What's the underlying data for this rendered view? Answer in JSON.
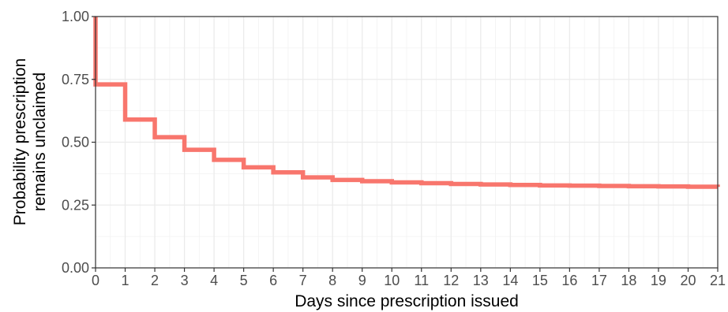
{
  "chart_data": {
    "type": "line",
    "subtype": "step",
    "title": "",
    "xlabel": "Days since prescription issued",
    "ylabel_lines": [
      "Probability prescription",
      "remains unclaimed"
    ],
    "xlim": [
      0,
      21
    ],
    "ylim": [
      0,
      1
    ],
    "x_ticks": [
      0,
      1,
      2,
      3,
      4,
      5,
      6,
      7,
      8,
      9,
      10,
      11,
      12,
      13,
      14,
      15,
      16,
      17,
      18,
      19,
      20,
      21
    ],
    "x_tick_labels": [
      "0",
      "1",
      "2",
      "3",
      "4",
      "5",
      "6",
      "7",
      "8",
      "9",
      "10",
      "11",
      "12",
      "13",
      "14",
      "15",
      "16",
      "17",
      "18",
      "19",
      "20",
      "21"
    ],
    "y_ticks": [
      0,
      0.25,
      0.5,
      0.75,
      1
    ],
    "y_tick_labels": [
      "0.00",
      "0.25",
      "0.50",
      "0.75",
      "1.00"
    ],
    "grid": true,
    "legend": "none",
    "series": [
      {
        "color": "#F8766D",
        "x": [
          0,
          0,
          1,
          2,
          3,
          4,
          5,
          6,
          7,
          8,
          9,
          10,
          11,
          12,
          13,
          14,
          15,
          16,
          17,
          18,
          19,
          20,
          21
        ],
        "y": [
          1.0,
          0.73,
          0.59,
          0.52,
          0.47,
          0.43,
          0.4,
          0.38,
          0.36,
          0.35,
          0.345,
          0.34,
          0.337,
          0.334,
          0.332,
          0.33,
          0.328,
          0.327,
          0.326,
          0.325,
          0.324,
          0.323,
          0.322
        ]
      }
    ]
  }
}
